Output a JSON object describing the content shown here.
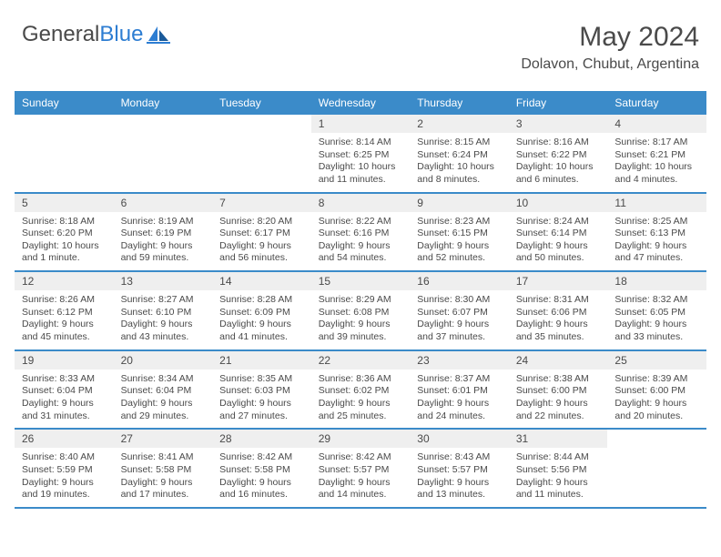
{
  "logo": {
    "part1": "General",
    "part2": "Blue"
  },
  "title": "May 2024",
  "location": "Dolavon, Chubut, Argentina",
  "colors": {
    "header_bg": "#3b8bc9",
    "accent": "#2d7dd2",
    "text": "#4a4a4a",
    "daynum_bg": "#efefef",
    "rule": "#3b8bc9"
  },
  "days_of_week": [
    "Sunday",
    "Monday",
    "Tuesday",
    "Wednesday",
    "Thursday",
    "Friday",
    "Saturday"
  ],
  "weeks": [
    [
      null,
      null,
      null,
      {
        "n": "1",
        "sr": "Sunrise: 8:14 AM",
        "ss": "Sunset: 6:25 PM",
        "dl": "Daylight: 10 hours and 11 minutes."
      },
      {
        "n": "2",
        "sr": "Sunrise: 8:15 AM",
        "ss": "Sunset: 6:24 PM",
        "dl": "Daylight: 10 hours and 8 minutes."
      },
      {
        "n": "3",
        "sr": "Sunrise: 8:16 AM",
        "ss": "Sunset: 6:22 PM",
        "dl": "Daylight: 10 hours and 6 minutes."
      },
      {
        "n": "4",
        "sr": "Sunrise: 8:17 AM",
        "ss": "Sunset: 6:21 PM",
        "dl": "Daylight: 10 hours and 4 minutes."
      }
    ],
    [
      {
        "n": "5",
        "sr": "Sunrise: 8:18 AM",
        "ss": "Sunset: 6:20 PM",
        "dl": "Daylight: 10 hours and 1 minute."
      },
      {
        "n": "6",
        "sr": "Sunrise: 8:19 AM",
        "ss": "Sunset: 6:19 PM",
        "dl": "Daylight: 9 hours and 59 minutes."
      },
      {
        "n": "7",
        "sr": "Sunrise: 8:20 AM",
        "ss": "Sunset: 6:17 PM",
        "dl": "Daylight: 9 hours and 56 minutes."
      },
      {
        "n": "8",
        "sr": "Sunrise: 8:22 AM",
        "ss": "Sunset: 6:16 PM",
        "dl": "Daylight: 9 hours and 54 minutes."
      },
      {
        "n": "9",
        "sr": "Sunrise: 8:23 AM",
        "ss": "Sunset: 6:15 PM",
        "dl": "Daylight: 9 hours and 52 minutes."
      },
      {
        "n": "10",
        "sr": "Sunrise: 8:24 AM",
        "ss": "Sunset: 6:14 PM",
        "dl": "Daylight: 9 hours and 50 minutes."
      },
      {
        "n": "11",
        "sr": "Sunrise: 8:25 AM",
        "ss": "Sunset: 6:13 PM",
        "dl": "Daylight: 9 hours and 47 minutes."
      }
    ],
    [
      {
        "n": "12",
        "sr": "Sunrise: 8:26 AM",
        "ss": "Sunset: 6:12 PM",
        "dl": "Daylight: 9 hours and 45 minutes."
      },
      {
        "n": "13",
        "sr": "Sunrise: 8:27 AM",
        "ss": "Sunset: 6:10 PM",
        "dl": "Daylight: 9 hours and 43 minutes."
      },
      {
        "n": "14",
        "sr": "Sunrise: 8:28 AM",
        "ss": "Sunset: 6:09 PM",
        "dl": "Daylight: 9 hours and 41 minutes."
      },
      {
        "n": "15",
        "sr": "Sunrise: 8:29 AM",
        "ss": "Sunset: 6:08 PM",
        "dl": "Daylight: 9 hours and 39 minutes."
      },
      {
        "n": "16",
        "sr": "Sunrise: 8:30 AM",
        "ss": "Sunset: 6:07 PM",
        "dl": "Daylight: 9 hours and 37 minutes."
      },
      {
        "n": "17",
        "sr": "Sunrise: 8:31 AM",
        "ss": "Sunset: 6:06 PM",
        "dl": "Daylight: 9 hours and 35 minutes."
      },
      {
        "n": "18",
        "sr": "Sunrise: 8:32 AM",
        "ss": "Sunset: 6:05 PM",
        "dl": "Daylight: 9 hours and 33 minutes."
      }
    ],
    [
      {
        "n": "19",
        "sr": "Sunrise: 8:33 AM",
        "ss": "Sunset: 6:04 PM",
        "dl": "Daylight: 9 hours and 31 minutes."
      },
      {
        "n": "20",
        "sr": "Sunrise: 8:34 AM",
        "ss": "Sunset: 6:04 PM",
        "dl": "Daylight: 9 hours and 29 minutes."
      },
      {
        "n": "21",
        "sr": "Sunrise: 8:35 AM",
        "ss": "Sunset: 6:03 PM",
        "dl": "Daylight: 9 hours and 27 minutes."
      },
      {
        "n": "22",
        "sr": "Sunrise: 8:36 AM",
        "ss": "Sunset: 6:02 PM",
        "dl": "Daylight: 9 hours and 25 minutes."
      },
      {
        "n": "23",
        "sr": "Sunrise: 8:37 AM",
        "ss": "Sunset: 6:01 PM",
        "dl": "Daylight: 9 hours and 24 minutes."
      },
      {
        "n": "24",
        "sr": "Sunrise: 8:38 AM",
        "ss": "Sunset: 6:00 PM",
        "dl": "Daylight: 9 hours and 22 minutes."
      },
      {
        "n": "25",
        "sr": "Sunrise: 8:39 AM",
        "ss": "Sunset: 6:00 PM",
        "dl": "Daylight: 9 hours and 20 minutes."
      }
    ],
    [
      {
        "n": "26",
        "sr": "Sunrise: 8:40 AM",
        "ss": "Sunset: 5:59 PM",
        "dl": "Daylight: 9 hours and 19 minutes."
      },
      {
        "n": "27",
        "sr": "Sunrise: 8:41 AM",
        "ss": "Sunset: 5:58 PM",
        "dl": "Daylight: 9 hours and 17 minutes."
      },
      {
        "n": "28",
        "sr": "Sunrise: 8:42 AM",
        "ss": "Sunset: 5:58 PM",
        "dl": "Daylight: 9 hours and 16 minutes."
      },
      {
        "n": "29",
        "sr": "Sunrise: 8:42 AM",
        "ss": "Sunset: 5:57 PM",
        "dl": "Daylight: 9 hours and 14 minutes."
      },
      {
        "n": "30",
        "sr": "Sunrise: 8:43 AM",
        "ss": "Sunset: 5:57 PM",
        "dl": "Daylight: 9 hours and 13 minutes."
      },
      {
        "n": "31",
        "sr": "Sunrise: 8:44 AM",
        "ss": "Sunset: 5:56 PM",
        "dl": "Daylight: 9 hours and 11 minutes."
      },
      null
    ]
  ]
}
